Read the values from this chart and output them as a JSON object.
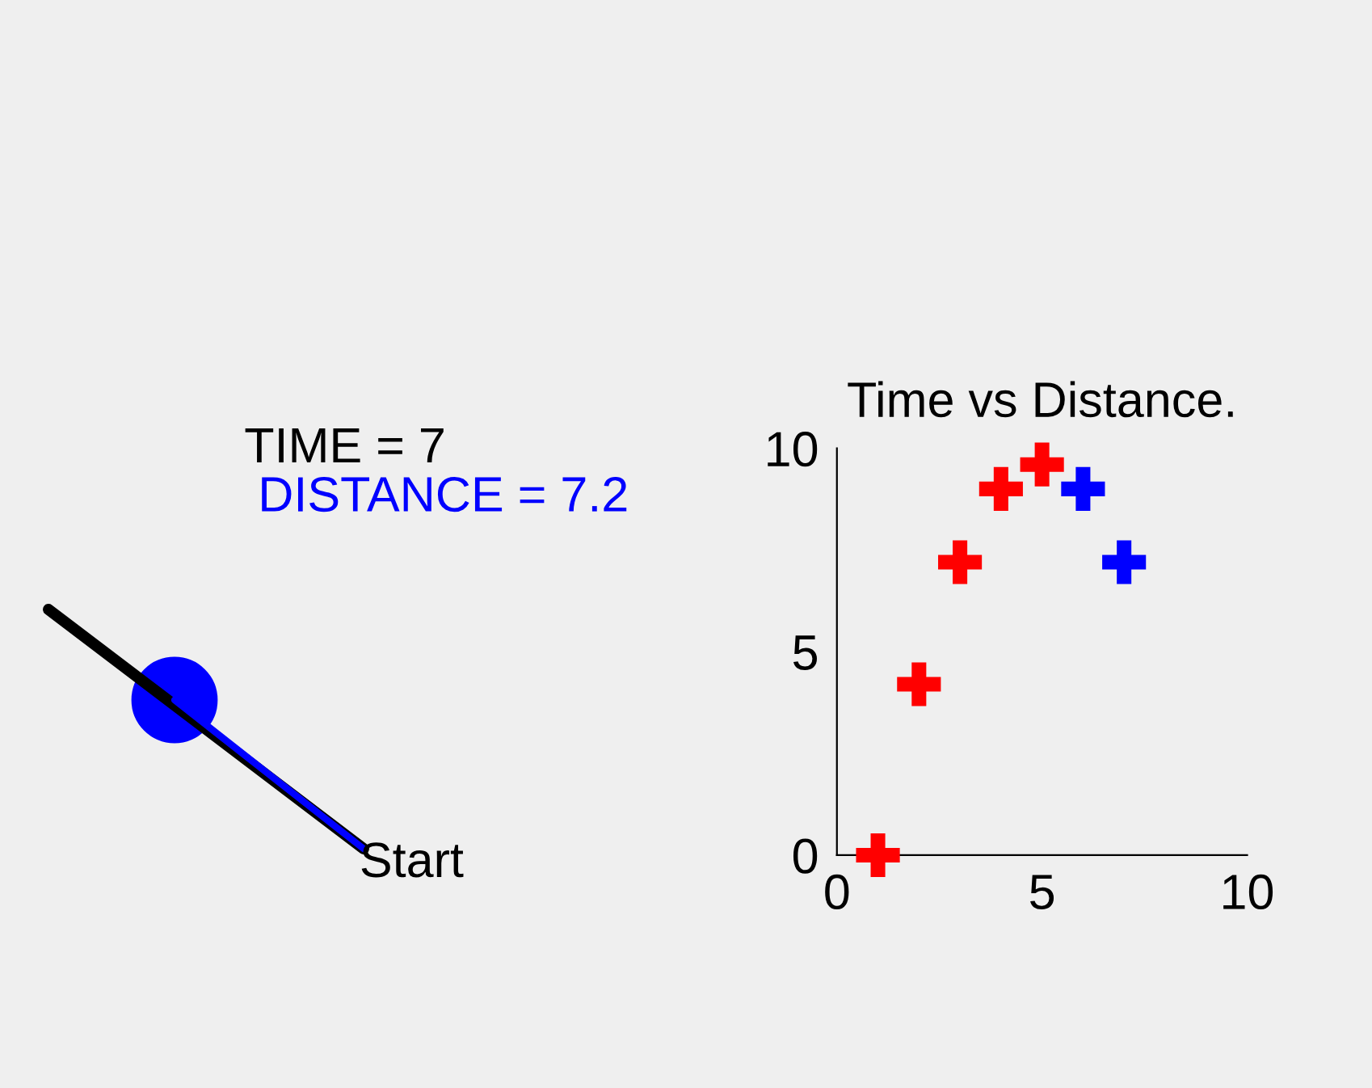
{
  "chart_data": {
    "type": "scatter",
    "title": "Time vs Distance.",
    "x": [
      1,
      2,
      3,
      4,
      5,
      6,
      7
    ],
    "series": [
      {
        "color": "#ff0000",
        "values": [
          0,
          4.2,
          7.2,
          9,
          9.6,
          null,
          null
        ]
      },
      {
        "color": "#0000ff",
        "values": [
          null,
          null,
          null,
          null,
          null,
          9,
          7.2
        ]
      }
    ],
    "xlim": [
      0,
      10
    ],
    "ylim": [
      0,
      10
    ],
    "xticks": [
      0,
      5,
      10
    ],
    "yticks": [
      0,
      5,
      10
    ],
    "marker": "cross",
    "grid": false,
    "legend": false,
    "annotations": [
      "TIME = 7",
      "DISTANCE = 7.2",
      "Start"
    ]
  }
}
